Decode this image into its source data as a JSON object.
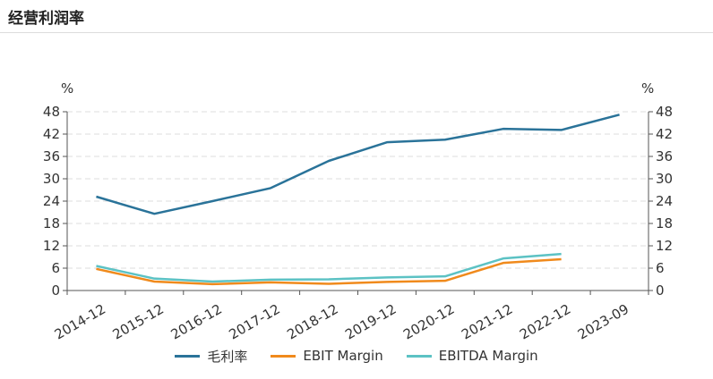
{
  "header": {
    "title": "经营利润率"
  },
  "chart_data": {
    "type": "line",
    "title": "经营利润率",
    "y_unit_left": "%",
    "y_unit_right": "%",
    "ylim": [
      0,
      48
    ],
    "yticks": [
      "0",
      "6",
      "12",
      "18",
      "24",
      "30",
      "36",
      "42",
      "48"
    ],
    "categories": [
      "2014-12",
      "2015-12",
      "2016-12",
      "2017-12",
      "2018-12",
      "2019-12",
      "2020-12",
      "2021-12",
      "2022-12",
      "2023-09"
    ],
    "grid": true,
    "legend_position": "bottom",
    "series": [
      {
        "name": "毛利率",
        "color": "#2a7399",
        "values": [
          25.2,
          20.6,
          24.0,
          27.5,
          34.8,
          39.8,
          40.5,
          43.4,
          43.1,
          47.2
        ]
      },
      {
        "name": "EBIT Margin",
        "color": "#f08a1c",
        "values": [
          5.8,
          2.4,
          1.7,
          2.2,
          1.8,
          2.3,
          2.6,
          7.4,
          8.4,
          null
        ]
      },
      {
        "name": "EBITDA Margin",
        "color": "#5cc2c4",
        "values": [
          6.6,
          3.2,
          2.4,
          2.9,
          3.0,
          3.5,
          3.8,
          8.6,
          9.8,
          null
        ]
      }
    ]
  }
}
